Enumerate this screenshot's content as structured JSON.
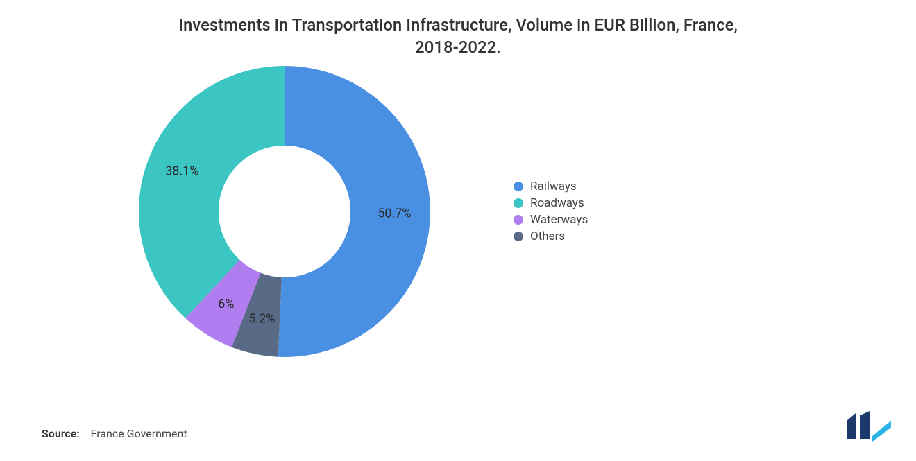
{
  "title_line1": "Investments in Transportation Infrastructure, Volume in EUR Billion, France,",
  "title_line2": "2018-2022.",
  "title_fontsize": 24,
  "title_color": "#333333",
  "chart": {
    "type": "donut",
    "outer_radius": 210,
    "inner_radius": 95,
    "start_angle_deg": -90,
    "background_color": "#ffffff",
    "label_fontsize": 18,
    "label_color": "#2a2a2a",
    "slices": [
      {
        "name": "Railways",
        "value": 50.7,
        "label": "50.7%",
        "color": "#4a90e2"
      },
      {
        "name": "Others",
        "value": 5.2,
        "label": "5.2%",
        "color": "#596a86"
      },
      {
        "name": "Waterways",
        "value": 6.0,
        "label": "6%",
        "color": "#b07df0"
      },
      {
        "name": "Roadways",
        "value": 38.1,
        "label": "38.1%",
        "color": "#3bc5c3"
      }
    ]
  },
  "legend": {
    "fontsize": 17,
    "label_color": "#444444",
    "items": [
      {
        "label": "Railways",
        "color": "#4a90e2"
      },
      {
        "label": "Roadways",
        "color": "#3bc5c3"
      },
      {
        "label": "Waterways",
        "color": "#b07df0"
      },
      {
        "label": "Others",
        "color": "#596a86"
      }
    ]
  },
  "source_label": "Source:",
  "source_value": "France Government",
  "logo_colors": {
    "bar1": "#1b3a6b",
    "bar2": "#1b3a6b",
    "accent": "#2bb3e6"
  }
}
